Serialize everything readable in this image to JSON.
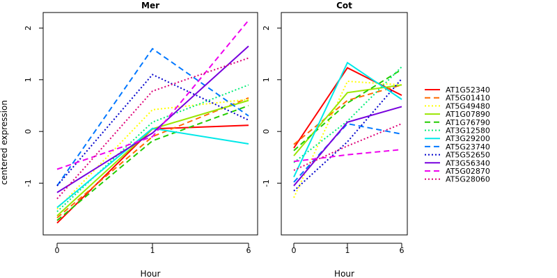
{
  "figure": {
    "ylabel": "centered expression"
  },
  "chart_data": [
    {
      "type": "line",
      "title": "Mer",
      "xlabel": "Hour",
      "ylabel": "centered expression",
      "x": [
        0,
        1,
        6
      ],
      "x_ticks": [
        "0",
        "1",
        "6"
      ],
      "y_ticks": [
        "-1",
        "0",
        "1",
        "2"
      ],
      "ylim": [
        -2,
        2.3
      ],
      "grid": false,
      "series": [
        {
          "name": "AT1G52340",
          "values": [
            -1.77,
            0.05,
            0.12
          ],
          "color": "#ff0000",
          "dash": "solid",
          "width": 2
        },
        {
          "name": "AT5G01410",
          "values": [
            -1.67,
            -0.1,
            0.65
          ],
          "color": "#ff6a00",
          "dash": "dashed",
          "width": 2
        },
        {
          "name": "AT5G49480",
          "values": [
            -1.5,
            0.42,
            0.62
          ],
          "color": "#ffff00",
          "dash": "dotted",
          "width": 2
        },
        {
          "name": "AT1G07890",
          "values": [
            -1.63,
            0.05,
            0.6
          ],
          "color": "#99e600",
          "dash": "solid",
          "width": 2
        },
        {
          "name": "AT1G76790",
          "values": [
            -1.72,
            -0.18,
            0.5
          ],
          "color": "#22cc00",
          "dash": "dashed",
          "width": 2
        },
        {
          "name": "AT3G12580",
          "values": [
            -1.55,
            0.18,
            0.9
          ],
          "color": "#00ee77",
          "dash": "dotted",
          "width": 2
        },
        {
          "name": "AT3G29200",
          "values": [
            -1.47,
            0.06,
            -0.24
          ],
          "color": "#00e8e8",
          "dash": "solid",
          "width": 2
        },
        {
          "name": "AT5G23740",
          "values": [
            -1.05,
            1.6,
            0.3
          ],
          "color": "#0077ff",
          "dash": "dashed",
          "width": 2
        },
        {
          "name": "AT5G52650",
          "values": [
            -1.05,
            1.1,
            0.22
          ],
          "color": "#0000cc",
          "dash": "dotted",
          "width": 2
        },
        {
          "name": "AT3G56340",
          "values": [
            -1.18,
            -0.03,
            1.65
          ],
          "color": "#7700dd",
          "dash": "solid",
          "width": 2
        },
        {
          "name": "AT5G02870",
          "values": [
            -0.73,
            -0.1,
            2.15
          ],
          "color": "#ee00ee",
          "dash": "dashed",
          "width": 2
        },
        {
          "name": "AT5G28060",
          "values": [
            -1.3,
            0.78,
            1.42
          ],
          "color": "#dd0077",
          "dash": "dotted",
          "width": 2
        }
      ]
    },
    {
      "type": "line",
      "title": "Cot",
      "xlabel": "Hour",
      "ylabel": "",
      "x": [
        0,
        1,
        6
      ],
      "x_ticks": [
        "0",
        "1",
        "6"
      ],
      "y_ticks": [
        "-1",
        "0",
        "1",
        "2"
      ],
      "ylim": [
        -2,
        2.3
      ],
      "grid": false,
      "series": [
        {
          "name": "AT1G52340",
          "values": [
            -0.32,
            1.23,
            0.7
          ],
          "color": "#ff0000",
          "dash": "solid",
          "width": 2
        },
        {
          "name": "AT5G01410",
          "values": [
            -0.25,
            0.6,
            0.9
          ],
          "color": "#ff6a00",
          "dash": "dashed",
          "width": 2
        },
        {
          "name": "AT5G49480",
          "values": [
            -1.28,
            0.97,
            0.9
          ],
          "color": "#ffff00",
          "dash": "dotted",
          "width": 2
        },
        {
          "name": "AT1G07890",
          "values": [
            -0.47,
            0.75,
            0.9
          ],
          "color": "#99e600",
          "dash": "solid",
          "width": 2
        },
        {
          "name": "AT1G76790",
          "values": [
            -0.37,
            0.55,
            1.2
          ],
          "color": "#22cc00",
          "dash": "dashed",
          "width": 2
        },
        {
          "name": "AT3G12580",
          "values": [
            -0.6,
            0.2,
            1.25
          ],
          "color": "#00ee77",
          "dash": "dotted",
          "width": 2
        },
        {
          "name": "AT3G29200",
          "values": [
            -0.88,
            1.33,
            0.62
          ],
          "color": "#00e8e8",
          "dash": "solid",
          "width": 2
        },
        {
          "name": "AT5G23740",
          "values": [
            -0.98,
            0.15,
            -0.05
          ],
          "color": "#0077ff",
          "dash": "dashed",
          "width": 2
        },
        {
          "name": "AT5G52650",
          "values": [
            -1.15,
            -0.2,
            1.02
          ],
          "color": "#0000cc",
          "dash": "dotted",
          "width": 2
        },
        {
          "name": "AT3G56340",
          "values": [
            -1.05,
            0.18,
            0.48
          ],
          "color": "#7700dd",
          "dash": "solid",
          "width": 2
        },
        {
          "name": "AT5G02870",
          "values": [
            -0.58,
            -0.45,
            -0.35
          ],
          "color": "#ee00ee",
          "dash": "dashed",
          "width": 2
        },
        {
          "name": "AT5G28060",
          "values": [
            -0.75,
            -0.28,
            0.15
          ],
          "color": "#dd0077",
          "dash": "dotted",
          "width": 2
        }
      ]
    }
  ],
  "legend": {
    "placement": "right"
  }
}
